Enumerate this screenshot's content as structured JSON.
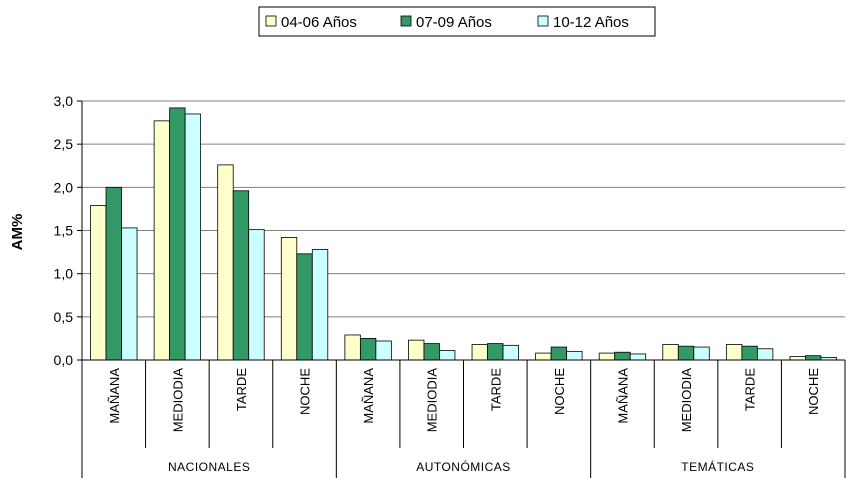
{
  "chart_data": {
    "type": "bar",
    "ylabel": "AM%",
    "ylim": [
      0,
      3.0
    ],
    "yticks": [
      "0,0",
      "0,5",
      "1,0",
      "1,5",
      "2,0",
      "2,5",
      "3,0"
    ],
    "ytick_values": [
      0,
      0.5,
      1.0,
      1.5,
      2.0,
      2.5,
      3.0
    ],
    "grid": true,
    "legend_position": "top-center",
    "groups": [
      {
        "label": "NACIONALES",
        "categories": [
          "MAÑANA",
          "MEDIODIA",
          "TARDE",
          "NOCHE"
        ]
      },
      {
        "label": "AUTONÓMICAS",
        "categories": [
          "MAÑANA",
          "MEDIODIA",
          "TARDE",
          "NOCHE"
        ]
      },
      {
        "label": "TEMÁTICAS",
        "categories": [
          "MAÑANA",
          "MEDIODIA",
          "TARDE",
          "NOCHE"
        ]
      }
    ],
    "series": [
      {
        "name": "04-06 Años",
        "color": "#FFFFCC",
        "values": [
          1.79,
          2.77,
          2.26,
          1.42,
          0.29,
          0.23,
          0.18,
          0.08,
          0.08,
          0.18,
          0.18,
          0.04
        ]
      },
      {
        "name": "07-09 Años",
        "color": "#339966",
        "values": [
          2.0,
          2.92,
          1.96,
          1.23,
          0.25,
          0.19,
          0.19,
          0.15,
          0.09,
          0.16,
          0.16,
          0.05
        ]
      },
      {
        "name": "10-12 Años",
        "color": "#CCFFFF",
        "values": [
          1.53,
          2.85,
          1.51,
          1.28,
          0.22,
          0.11,
          0.17,
          0.1,
          0.07,
          0.15,
          0.13,
          0.03
        ]
      }
    ]
  }
}
